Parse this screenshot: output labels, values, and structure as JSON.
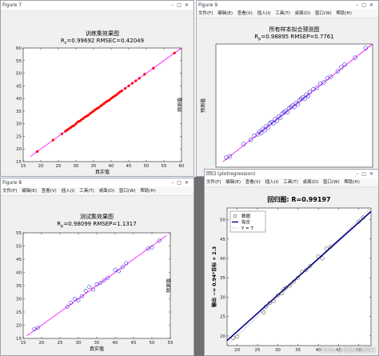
{
  "menu_labels": [
    "文件(F)",
    "编辑(E)",
    "查看(V)",
    "插入(I)",
    "工具(T)",
    "桌面(D)",
    "窗口(W)",
    "帮助(H)"
  ],
  "colors": {
    "window_bg": "#f0f0f0",
    "plot_bg": "#ffffff",
    "fit_line_magenta": "#ff00ff",
    "marker_red": "#ff0000",
    "marker_blue": "#0000cc",
    "fit_line_blue": "#00008b",
    "desktop_dark": "#6f6f6f"
  },
  "figure7": {
    "title_bar": "Figure 7",
    "plot_title": "训练集效果图",
    "metric": "R",
    "metric_sub": "c",
    "metric_text": "=0.99692  RMSEC=0.42049",
    "ylabel": "预测值",
    "xlabel": "真实值",
    "xticks": [
      "15",
      "20",
      "25",
      "30",
      "35",
      "40",
      "45",
      "50",
      "55",
      "60"
    ],
    "yticks": [
      "15",
      "20",
      "25",
      "30",
      "35",
      "40",
      "45",
      "50",
      "55",
      "60"
    ],
    "chart_data": {
      "type": "scatter",
      "xlim": [
        15,
        60
      ],
      "ylim": [
        15,
        60
      ],
      "grid": false,
      "fit_line": [
        [
          17,
          17
        ],
        [
          60,
          60
        ]
      ],
      "points": [
        [
          19,
          19
        ],
        [
          23.5,
          23.5
        ],
        [
          26,
          26
        ],
        [
          27,
          27
        ],
        [
          27.5,
          27.5
        ],
        [
          28,
          28
        ],
        [
          28.5,
          28.5
        ],
        [
          29,
          29
        ],
        [
          29.5,
          29.3
        ],
        [
          30,
          30
        ],
        [
          30.5,
          30.7
        ],
        [
          31,
          31
        ],
        [
          31.5,
          31.5
        ],
        [
          32,
          32
        ],
        [
          32.5,
          32.6
        ],
        [
          33,
          33
        ],
        [
          33.5,
          33.4
        ],
        [
          34,
          34
        ],
        [
          34.5,
          34.5
        ],
        [
          35,
          35
        ],
        [
          35.5,
          35.6
        ],
        [
          36,
          36
        ],
        [
          36.5,
          36.4
        ],
        [
          37,
          37
        ],
        [
          37.5,
          37.5
        ],
        [
          38,
          38
        ],
        [
          38.5,
          38.6
        ],
        [
          39,
          39
        ],
        [
          39.5,
          39.4
        ],
        [
          40,
          40
        ],
        [
          40.5,
          40.5
        ],
        [
          41,
          41
        ],
        [
          41.5,
          41.4
        ],
        [
          42,
          42
        ],
        [
          42.5,
          42.6
        ],
        [
          43,
          43
        ],
        [
          44,
          44
        ],
        [
          45,
          45
        ],
        [
          46,
          46
        ],
        [
          47,
          47
        ],
        [
          48,
          48
        ],
        [
          49.5,
          49.6
        ],
        [
          52,
          52
        ],
        [
          58,
          58
        ]
      ]
    }
  },
  "figure9": {
    "title_bar": "Figure 9",
    "plot_title": "所有样本拟合预测图",
    "metric": "R",
    "metric_sub": "p",
    "metric_text": "=0.98895  RMSEP=0.7761",
    "ylabel": "预测值",
    "chart_data": {
      "type": "scatter",
      "xlim": [
        15,
        60
      ],
      "ylim": [
        15,
        60
      ],
      "grid": false,
      "fit_line": [
        [
          17,
          17
        ],
        [
          60,
          60
        ]
      ],
      "points": [
        [
          18,
          18.5
        ],
        [
          19,
          19
        ],
        [
          23,
          23.5
        ],
        [
          25,
          25
        ],
        [
          26,
          26.5
        ],
        [
          27,
          27
        ],
        [
          27.5,
          28
        ],
        [
          28,
          27.5
        ],
        [
          28.5,
          29
        ],
        [
          29,
          28.5
        ],
        [
          29.5,
          30
        ],
        [
          30,
          29.5
        ],
        [
          30.5,
          31
        ],
        [
          31,
          31.5
        ],
        [
          31.5,
          31
        ],
        [
          32,
          32.5
        ],
        [
          32.5,
          32
        ],
        [
          33,
          33.5
        ],
        [
          33.5,
          33
        ],
        [
          34,
          34.5
        ],
        [
          34.5,
          35
        ],
        [
          35,
          35.5
        ],
        [
          35.5,
          35
        ],
        [
          36,
          36.5
        ],
        [
          36.5,
          37
        ],
        [
          37,
          37.5
        ],
        [
          37.5,
          37
        ],
        [
          38,
          38.5
        ],
        [
          38.5,
          38
        ],
        [
          39,
          39.5
        ],
        [
          39.5,
          40
        ],
        [
          40,
          40.5
        ],
        [
          40.5,
          40
        ],
        [
          41,
          41.5
        ],
        [
          41.5,
          41
        ],
        [
          42,
          42.5
        ],
        [
          43,
          43.5
        ],
        [
          44,
          44
        ],
        [
          45,
          45.5
        ],
        [
          46,
          46
        ],
        [
          47,
          47.5
        ],
        [
          48,
          48
        ],
        [
          50,
          50
        ],
        [
          51,
          51.5
        ],
        [
          52,
          52.5
        ],
        [
          55,
          55
        ],
        [
          58,
          58.5
        ]
      ]
    }
  },
  "figure8": {
    "title_bar": "Figure 8",
    "plot_title": "测试集效果图",
    "metric": "R",
    "metric_sub": "p",
    "metric_text": "=0.98099  RMSEP=1.1317",
    "ylabel": "预测值",
    "xlabel": "真实值",
    "xticks": [
      "15",
      "20",
      "25",
      "30",
      "35",
      "40",
      "45",
      "50",
      "55"
    ],
    "yticks": [
      "15",
      "20",
      "25",
      "30",
      "35",
      "40",
      "45",
      "50",
      "55"
    ],
    "chart_data": {
      "type": "scatter",
      "xlim": [
        15,
        55
      ],
      "ylim": [
        15,
        55
      ],
      "grid": false,
      "fit_line": [
        [
          16,
          16
        ],
        [
          54,
          54
        ]
      ],
      "points": [
        [
          18,
          18.5
        ],
        [
          19,
          19
        ],
        [
          27,
          27
        ],
        [
          28,
          28.5
        ],
        [
          29,
          30
        ],
        [
          30,
          29.5
        ],
        [
          31,
          31
        ],
        [
          32,
          33
        ],
        [
          33,
          34.5
        ],
        [
          34,
          33.5
        ],
        [
          35,
          35.5
        ],
        [
          36,
          36
        ],
        [
          37,
          37
        ],
        [
          38,
          38
        ],
        [
          40,
          41
        ],
        [
          41,
          40.5
        ],
        [
          42,
          42
        ],
        [
          43,
          43.5
        ],
        [
          49,
          49
        ],
        [
          50,
          49.5
        ],
        [
          52,
          52
        ]
      ]
    }
  },
  "figure_reg": {
    "title_bar": "回归 (plotregression)",
    "plot_title": "回归图: R=0.99197",
    "ylabel": "输出 ~= 0.94*目标 + 2.3",
    "legend": [
      "数据",
      "拟合",
      "Y = T"
    ],
    "xticks": [
      "20",
      "25",
      "30",
      "35",
      "40",
      "45",
      "50"
    ],
    "yticks": [
      "20",
      "25",
      "30",
      "35",
      "40",
      "45",
      "50"
    ],
    "chart_data": {
      "type": "scatter",
      "xlim": [
        17.5,
        53
      ],
      "ylim": [
        17.5,
        53
      ],
      "grid": false,
      "fit_line": [
        [
          17.5,
          18.8
        ],
        [
          53,
          52.1
        ]
      ],
      "identity_line": [
        [
          17.5,
          17.5
        ],
        [
          53,
          53
        ]
      ],
      "points": [
        [
          19,
          19.5
        ],
        [
          20,
          19.8
        ],
        [
          26.5,
          26
        ],
        [
          27,
          27.5
        ],
        [
          28,
          28.5
        ],
        [
          29,
          29
        ],
        [
          30,
          30.5
        ],
        [
          31,
          31
        ],
        [
          31.5,
          32
        ],
        [
          32,
          32.5
        ],
        [
          33,
          33
        ],
        [
          34,
          34
        ],
        [
          35,
          35
        ],
        [
          36,
          36.5
        ],
        [
          37,
          37
        ],
        [
          38,
          38
        ],
        [
          40,
          40.5
        ],
        [
          41,
          40
        ],
        [
          42,
          42.5
        ],
        [
          43,
          43
        ],
        [
          50,
          49.5
        ],
        [
          51,
          50.5
        ]
      ]
    }
  },
  "watermark": "CSDN @代码与你同行"
}
